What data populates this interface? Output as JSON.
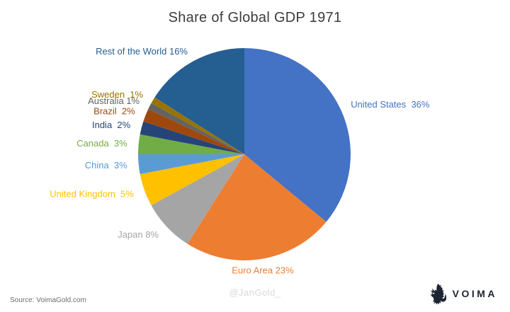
{
  "title": "Share of Global GDP 1971",
  "footer": {
    "source": "Source: VoimaGold.com",
    "watermark": "@JanGold_",
    "logo_text": "VOIMA"
  },
  "colors": {
    "title_text": "#3C3C3C",
    "source_text": "#6E6E6E",
    "watermark_text": "#D9D9D9",
    "logo_navy": "#1D2433",
    "background": "#FFFFFF"
  },
  "chart_data": {
    "type": "pie",
    "title": "Share of Global GDP 1971",
    "start_angle_deg": 0,
    "direction": "clockwise",
    "legend": "none",
    "labels_position": "outside",
    "slices": [
      {
        "label": "United States",
        "value_pct": 36,
        "color": "#4472C4",
        "label_text": "United States  36%"
      },
      {
        "label": "Euro Area",
        "value_pct": 23,
        "color": "#ED7D31",
        "label_text": "Euro Area 23%"
      },
      {
        "label": "Japan",
        "value_pct": 8,
        "color": "#A5A5A5",
        "label_text": "Japan 8%"
      },
      {
        "label": "United Kingdom",
        "value_pct": 5,
        "color": "#FFC000",
        "label_text": "United Kingdom  5%"
      },
      {
        "label": "China",
        "value_pct": 3,
        "color": "#5B9BD5",
        "label_text": "China  3%"
      },
      {
        "label": "Canada",
        "value_pct": 3,
        "color": "#70AD47",
        "label_text": "Canada  3%"
      },
      {
        "label": "India",
        "value_pct": 2,
        "color": "#264478",
        "label_text": "India  2%"
      },
      {
        "label": "Brazil",
        "value_pct": 2,
        "color": "#9E480E",
        "label_text": "Brazil  2%"
      },
      {
        "label": "Australia",
        "value_pct": 1,
        "color": "#636363",
        "label_text": "Australia 1%"
      },
      {
        "label": "Sweden",
        "value_pct": 1,
        "color": "#997300",
        "label_text": "Sweden  1%"
      },
      {
        "label": "Rest of the World",
        "value_pct": 16,
        "color": "#255E91",
        "label_text": "Rest of the World 16%"
      }
    ]
  }
}
